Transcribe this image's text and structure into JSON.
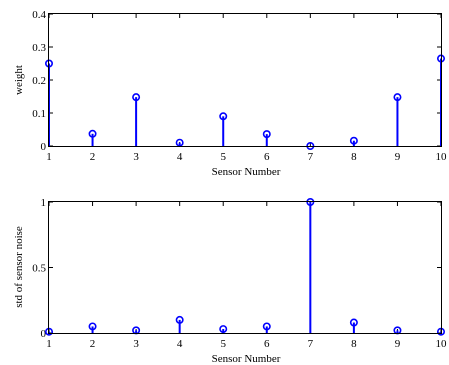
{
  "chart_data": [
    {
      "type": "stem",
      "title": "",
      "xlabel": "Sensor Number",
      "ylabel": "weight",
      "x": [
        1,
        2,
        3,
        4,
        5,
        6,
        7,
        8,
        9,
        10
      ],
      "values": [
        0.25,
        0.037,
        0.148,
        0.01,
        0.09,
        0.036,
        0.0,
        0.016,
        0.148,
        0.265
      ],
      "xlim": [
        1,
        10
      ],
      "ylim": [
        0,
        0.4
      ],
      "xticks": [
        "1",
        "2",
        "3",
        "4",
        "5",
        "6",
        "7",
        "8",
        "9",
        "10"
      ],
      "yticks": [
        "0",
        "0.1",
        "0.2",
        "0.3",
        "0.4"
      ],
      "grid": false,
      "color": "#0000ff"
    },
    {
      "type": "stem",
      "title": "",
      "xlabel": "Sensor Number",
      "ylabel": "std of sensor noise",
      "x": [
        1,
        2,
        3,
        4,
        5,
        6,
        7,
        8,
        9,
        10
      ],
      "values": [
        0.01,
        0.05,
        0.02,
        0.1,
        0.03,
        0.05,
        1.0,
        0.08,
        0.02,
        0.01
      ],
      "xlim": [
        1,
        10
      ],
      "ylim": [
        0,
        1
      ],
      "xticks": [
        "1",
        "2",
        "3",
        "4",
        "5",
        "6",
        "7",
        "8",
        "9",
        "10"
      ],
      "yticks": [
        "0",
        "0.5",
        "1"
      ],
      "grid": false,
      "color": "#0000ff"
    }
  ]
}
